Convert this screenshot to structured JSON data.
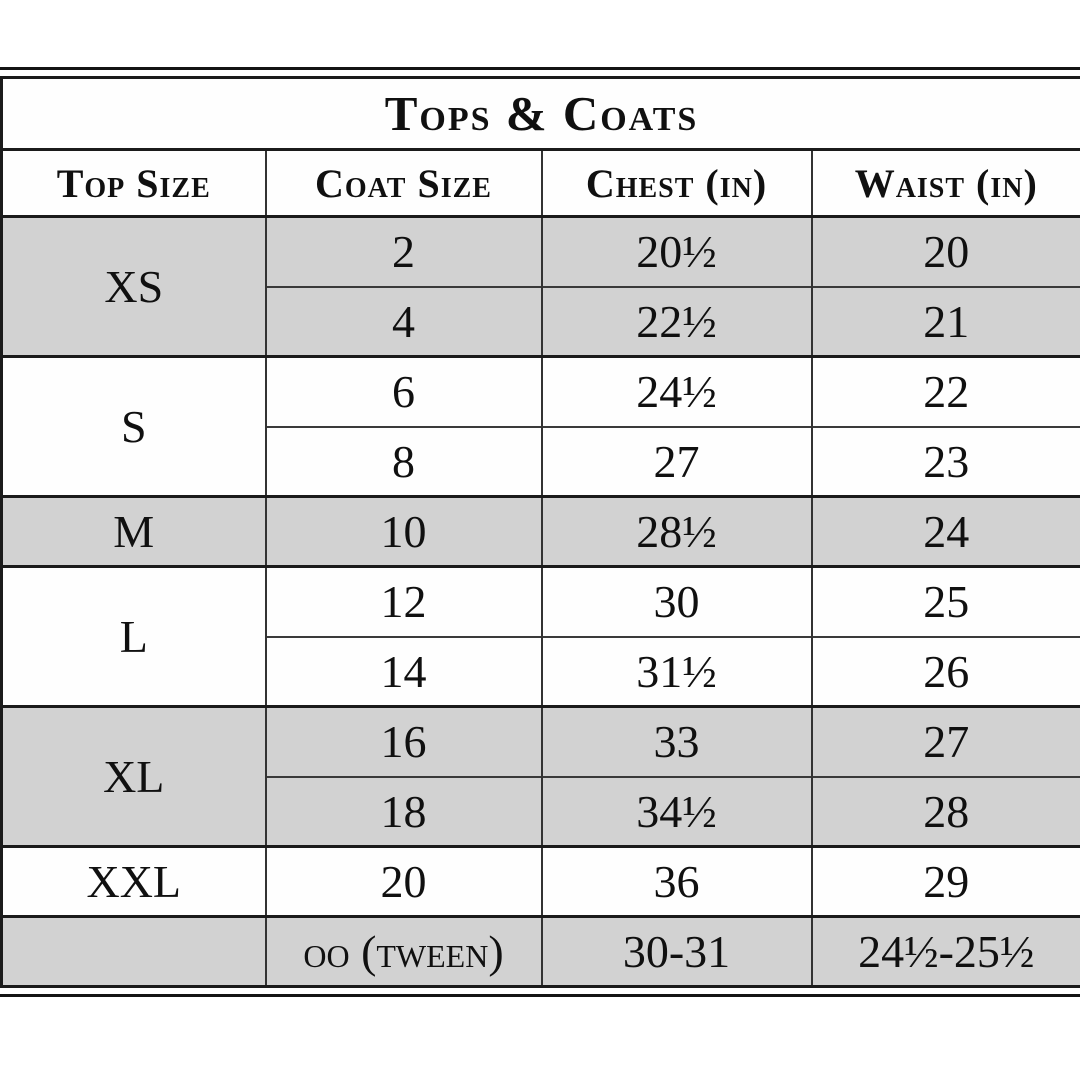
{
  "table": {
    "title": "Tops & Coats",
    "columns": [
      "Top Size",
      "Coat Size",
      "Chest (in)",
      "Waist (in)"
    ],
    "groups": [
      {
        "top_size": "XS",
        "shaded": true,
        "rows": [
          {
            "coat_size": "2",
            "chest_in": "20½",
            "waist_in": "20"
          },
          {
            "coat_size": "4",
            "chest_in": "22½",
            "waist_in": "21"
          }
        ]
      },
      {
        "top_size": "S",
        "shaded": false,
        "rows": [
          {
            "coat_size": "6",
            "chest_in": "24½",
            "waist_in": "22"
          },
          {
            "coat_size": "8",
            "chest_in": "27",
            "waist_in": "23"
          }
        ]
      },
      {
        "top_size": "M",
        "shaded": true,
        "rows": [
          {
            "coat_size": "10",
            "chest_in": "28½",
            "waist_in": "24"
          }
        ]
      },
      {
        "top_size": "L",
        "shaded": false,
        "rows": [
          {
            "coat_size": "12",
            "chest_in": "30",
            "waist_in": "25"
          },
          {
            "coat_size": "14",
            "chest_in": "31½",
            "waist_in": "26"
          }
        ]
      },
      {
        "top_size": "XL",
        "shaded": true,
        "rows": [
          {
            "coat_size": "16",
            "chest_in": "33",
            "waist_in": "27"
          },
          {
            "coat_size": "18",
            "chest_in": "34½",
            "waist_in": "28"
          }
        ]
      },
      {
        "top_size": "XXL",
        "shaded": false,
        "rows": [
          {
            "coat_size": "20",
            "chest_in": "36",
            "waist_in": "29"
          }
        ]
      },
      {
        "top_size": "",
        "shaded": true,
        "rows": [
          {
            "coat_size": "oo (tween)",
            "chest_in": "30-31",
            "waist_in": "24½-25½"
          }
        ]
      }
    ],
    "colors": {
      "shaded_row": "#d2d2d2",
      "border_heavy": "#1b1b1b",
      "border_light": "#3a3a3a",
      "text": "#101010",
      "background": "#ffffff"
    }
  }
}
